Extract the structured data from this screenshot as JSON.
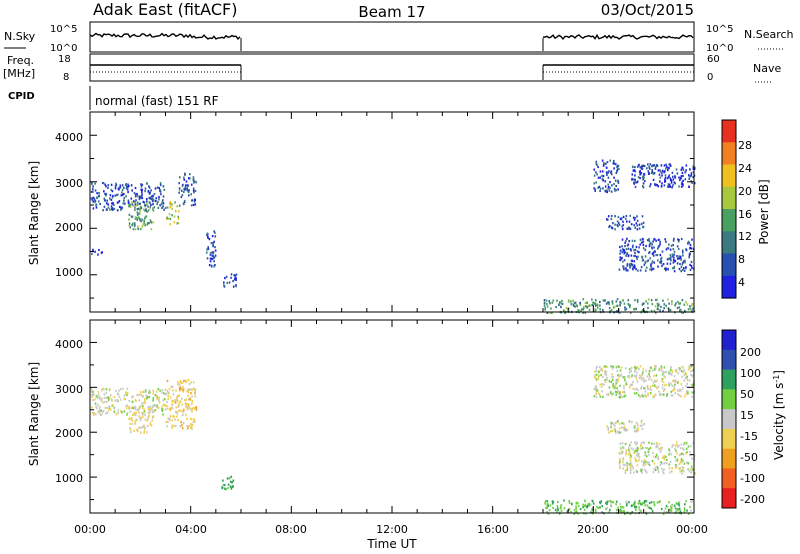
{
  "header": {
    "station": "Adak East (fitACF)",
    "beam": "Beam 17",
    "date": "03/Oct/2015"
  },
  "strips": {
    "nsky_label": "N.Sky",
    "nsky_ticks": [
      "10^5",
      "10^0"
    ],
    "nsearch_label": "N.Search",
    "nsearch_ticks": [
      "10^5",
      "10^0"
    ],
    "freq_label": "Freq.",
    "freq_unit": "[MHz]",
    "freq_ticks": [
      "18",
      "8"
    ],
    "nave_label": "Nave",
    "nave_ticks": [
      "60",
      "0"
    ],
    "cpid_label": "CPID",
    "cpid_text": "normal (fast) 151 RF"
  },
  "time_axis": {
    "label": "Time UT",
    "ticks": [
      "00:00",
      "04:00",
      "08:00",
      "12:00",
      "16:00",
      "20:00",
      "00:00"
    ]
  },
  "range_axis": {
    "label": "Slant Range [km]",
    "ticks": [
      "1000",
      "2000",
      "3000",
      "4000"
    ]
  },
  "colorbars": {
    "power": {
      "label": "Power [dB]",
      "ticks": [
        "4",
        "8",
        "12",
        "16",
        "20",
        "24",
        "28"
      ],
      "colors": [
        "#2020e0",
        "#2850b0",
        "#3a7a80",
        "#4aa060",
        "#a8c840",
        "#f0c020",
        "#f08020",
        "#e83020"
      ]
    },
    "velocity": {
      "label": "Velocity [m s",
      "label_sup": "-1",
      "label_end": "]",
      "ticks": [
        "200",
        "100",
        "50",
        "15",
        "-15",
        "-50",
        "-100",
        "-200"
      ],
      "colors": [
        "#2020d0",
        "#3050b0",
        "#30a060",
        "#70d040",
        "#c8c8c8",
        "#f0d050",
        "#f0a020",
        "#f06020",
        "#e82020"
      ]
    }
  },
  "chart_data": [
    {
      "type": "line",
      "title": "N.Sky / N.Search",
      "x_range_hours": [
        0,
        24
      ],
      "y_scale": "log",
      "ylim": [
        1,
        100000
      ],
      "operating_intervals_hours": [
        [
          0,
          6.0
        ],
        [
          18.0,
          24.0
        ]
      ]
    },
    {
      "type": "line",
      "title": "Freq. / Nave",
      "xlim_hours": [
        0,
        24
      ],
      "freq_ylim_mhz": [
        8,
        18
      ],
      "nave_ylim": [
        0,
        60
      ],
      "operating_intervals_hours": [
        [
          0,
          6.0
        ],
        [
          18.0,
          24.0
        ]
      ]
    },
    {
      "type": "heatmap",
      "title": "Power",
      "xlabel": "Time UT",
      "ylabel": "Slant Range [km]",
      "xlim_hours": [
        0,
        24
      ],
      "ylim_km": [
        200,
        4500
      ],
      "color_scale_db": [
        0,
        32
      ],
      "regions": [
        {
          "t": [
            0.0,
            3.0
          ],
          "r": [
            2400,
            3000
          ],
          "value": 6
        },
        {
          "t": [
            1.5,
            2.5
          ],
          "r": [
            2000,
            2600
          ],
          "value": 14
        },
        {
          "t": [
            3.0,
            3.5
          ],
          "r": [
            2100,
            2600
          ],
          "value": 18
        },
        {
          "t": [
            3.5,
            4.2
          ],
          "r": [
            2500,
            3200
          ],
          "value": 7
        },
        {
          "t": [
            0.0,
            0.5
          ],
          "r": [
            1450,
            1600
          ],
          "value": 5
        },
        {
          "t": [
            4.6,
            5.0
          ],
          "r": [
            1200,
            2000
          ],
          "value": 6
        },
        {
          "t": [
            5.2,
            5.8
          ],
          "r": [
            750,
            1050
          ],
          "value": 4
        },
        {
          "t": [
            20.0,
            21.0
          ],
          "r": [
            2800,
            3500
          ],
          "value": 5
        },
        {
          "t": [
            21.5,
            24.0
          ],
          "r": [
            2900,
            3400
          ],
          "value": 5
        },
        {
          "t": [
            20.5,
            22.0
          ],
          "r": [
            2000,
            2300
          ],
          "value": 6
        },
        {
          "t": [
            21.0,
            24.0
          ],
          "r": [
            1100,
            1800
          ],
          "value": 6
        },
        {
          "t": [
            18.0,
            24.0
          ],
          "r": [
            200,
            500
          ],
          "value": 12
        }
      ]
    },
    {
      "type": "heatmap",
      "title": "Velocity",
      "xlabel": "Time UT",
      "ylabel": "Slant Range [km]",
      "xlim_hours": [
        0,
        24
      ],
      "ylim_km": [
        200,
        4500
      ],
      "color_scale_ms": [
        -200,
        200
      ],
      "regions": [
        {
          "t": [
            0.0,
            3.0
          ],
          "r": [
            2400,
            3000
          ],
          "value": 0
        },
        {
          "t": [
            1.5,
            2.5
          ],
          "r": [
            2000,
            2600
          ],
          "value": -20
        },
        {
          "t": [
            3.0,
            4.2
          ],
          "r": [
            2100,
            3200
          ],
          "value": -30
        },
        {
          "t": [
            5.2,
            5.8
          ],
          "r": [
            750,
            1050
          ],
          "value": 60
        },
        {
          "t": [
            20.0,
            24.0
          ],
          "r": [
            2800,
            3500
          ],
          "value": 0
        },
        {
          "t": [
            20.5,
            22.0
          ],
          "r": [
            2000,
            2300
          ],
          "value": 0
        },
        {
          "t": [
            21.0,
            24.0
          ],
          "r": [
            1100,
            1800
          ],
          "value": 0
        },
        {
          "t": [
            18.0,
            24.0
          ],
          "r": [
            200,
            500
          ],
          "value": 40
        }
      ]
    }
  ]
}
